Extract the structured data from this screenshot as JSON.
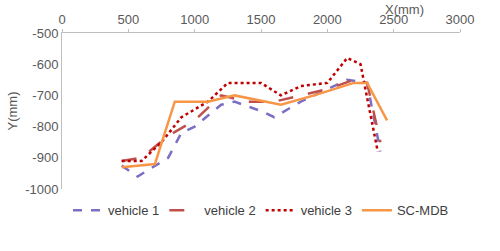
{
  "chart_data": {
    "type": "line",
    "xlabel": "X(mm)",
    "ylabel": "Y(mm)",
    "xlim": [
      0,
      3000
    ],
    "xticks": [
      0,
      500,
      1000,
      1500,
      2000,
      2500,
      3000
    ],
    "ylim": [
      -1000,
      -500
    ],
    "yticks": [
      -1000,
      -900,
      -800,
      -700,
      -600,
      -500
    ],
    "grid": false,
    "legend": "bottom",
    "series": [
      {
        "name": "vehicle 1",
        "color": "#7b6fc4",
        "line_style": "dash",
        "x": [
          450,
          570,
          800,
          900,
          1000,
          1200,
          1300,
          1500,
          1600,
          1800,
          2000,
          2150,
          2300,
          2400
        ],
        "values": [
          -925,
          -960,
          -900,
          -820,
          -800,
          -730,
          -720,
          -750,
          -770,
          -720,
          -680,
          -650,
          -660,
          -880
        ]
      },
      {
        "name": "vehicle 2",
        "color": "#c0504d",
        "line_style": "longdash",
        "x": [
          450,
          600,
          800,
          1000,
          1200,
          1400,
          1600,
          1800,
          2000,
          2200,
          2300,
          2400
        ],
        "values": [
          -910,
          -900,
          -830,
          -780,
          -700,
          -720,
          -720,
          -700,
          -680,
          -650,
          -660,
          -850
        ]
      },
      {
        "name": "vehicle 3",
        "color": "#c00000",
        "line_style": "dot",
        "x": [
          450,
          600,
          750,
          900,
          1100,
          1250,
          1500,
          1650,
          1800,
          2000,
          2150,
          2250,
          2380
        ],
        "values": [
          -910,
          -910,
          -850,
          -770,
          -720,
          -660,
          -660,
          -700,
          -670,
          -660,
          -580,
          -600,
          -880
        ]
      },
      {
        "name": "SC-MDB",
        "color": "#f79646",
        "line_style": "solid",
        "x": [
          450,
          700,
          850,
          1100,
          1300,
          1650,
          1900,
          2200,
          2300,
          2450
        ],
        "values": [
          -930,
          -920,
          -720,
          -720,
          -700,
          -730,
          -700,
          -660,
          -660,
          -780
        ]
      }
    ]
  }
}
